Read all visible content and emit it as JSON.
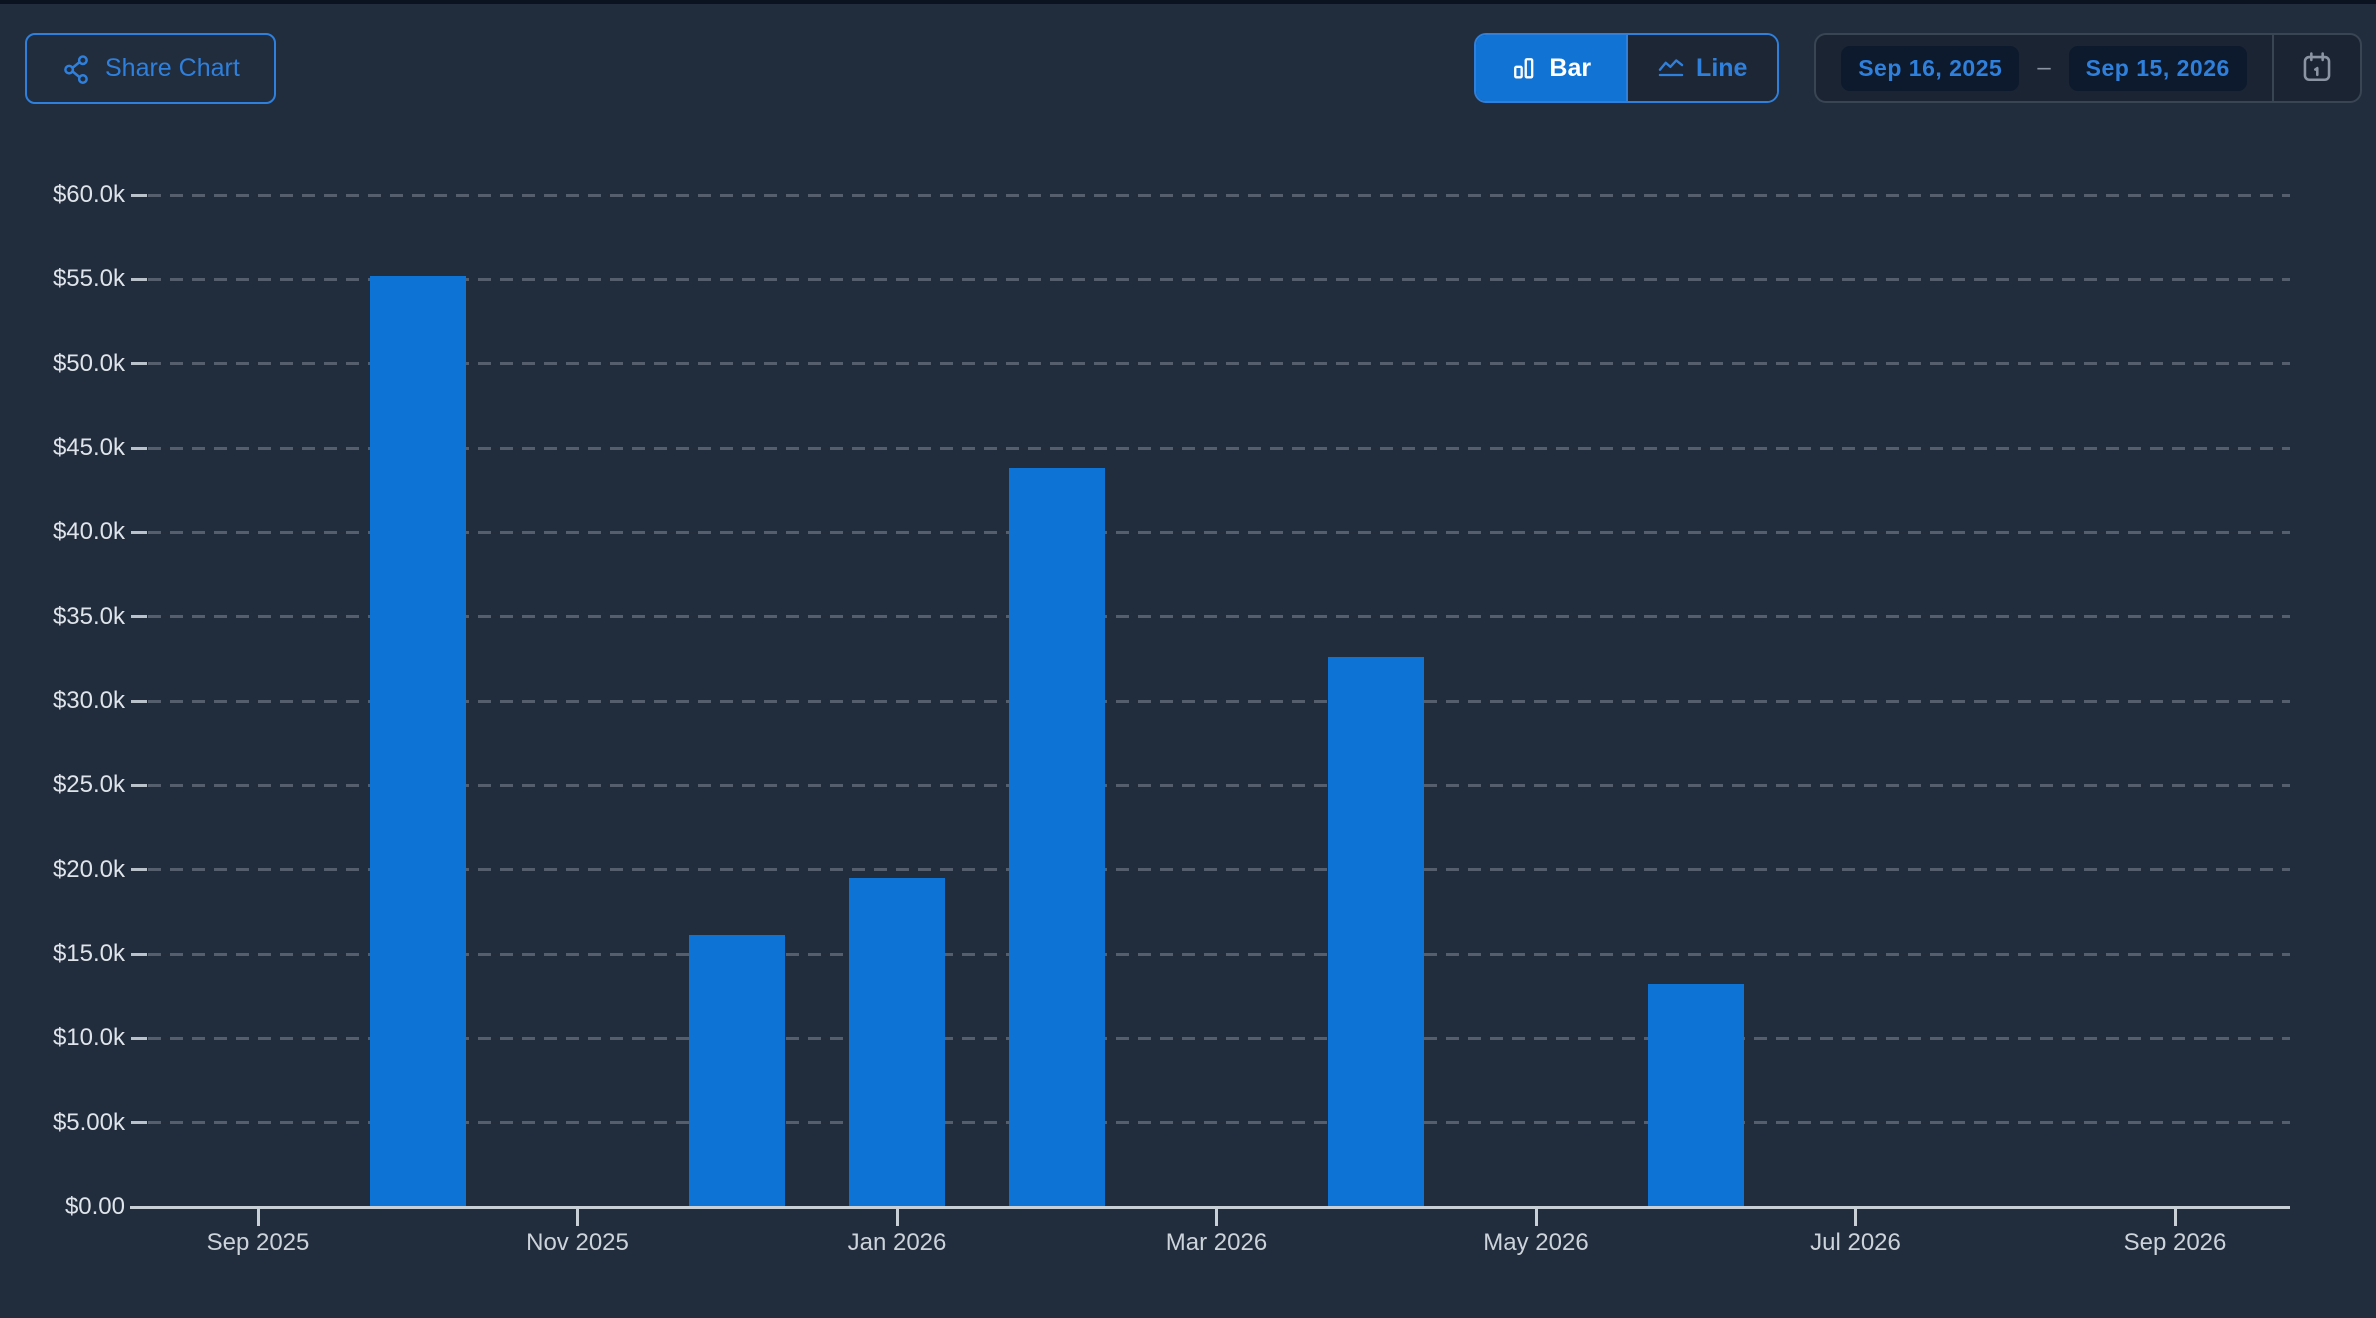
{
  "header": {
    "share_button": {
      "label": "Share Chart",
      "icon": "share-icon"
    },
    "view_toggle": {
      "options": [
        {
          "label": "Bar",
          "icon": "bar-chart-icon",
          "active": true
        },
        {
          "label": "Line",
          "icon": "line-chart-icon",
          "active": false
        }
      ]
    },
    "date_range": {
      "start": "Sep 16, 2025",
      "separator": "–",
      "end": "Sep 15, 2026",
      "icon": "calendar-icon"
    }
  },
  "colors": {
    "background": "#212c3c",
    "accent_blue": "#2f80dc",
    "bar_fill": "#0d73d4",
    "active_toggle_fill": "#1173d4",
    "pill_background": "#0d1a2d",
    "axis_line": "#c9cfd7",
    "gridline": "#545e6c",
    "y_label_text": "#dfe4ea",
    "x_label_text": "#ccd3db"
  },
  "chart_data": {
    "type": "bar",
    "x": [
      "Sep 2025",
      "Oct 2025",
      "Nov 2025",
      "Dec 2025",
      "Jan 2026",
      "Feb 2026",
      "Mar 2026",
      "Apr 2026",
      "May 2026",
      "Jun 2026",
      "Jul 2026",
      "Aug 2026",
      "Sep 2026"
    ],
    "values": [
      0,
      55200,
      0,
      16100,
      19500,
      43800,
      0,
      32600,
      0,
      13200,
      0,
      0,
      0
    ],
    "ylim": [
      0,
      60000
    ],
    "ytick_step": 5000,
    "ytick_labels": [
      "$0.00",
      "$5.00k",
      "$10.0k",
      "$15.0k",
      "$20.0k",
      "$25.0k",
      "$30.0k",
      "$35.0k",
      "$40.0k",
      "$45.0k",
      "$50.0k",
      "$55.0k",
      "$60.0k"
    ],
    "xtick_labels": [
      "Sep 2025",
      "Nov 2025",
      "Jan 2026",
      "Mar 2026",
      "May 2026",
      "Jul 2026",
      "Sep 2026"
    ],
    "xtick_month_indices": [
      0,
      2,
      4,
      6,
      8,
      10,
      12
    ],
    "grid": "dashed-horizontal",
    "legend": "none",
    "bar_color": "#0d73d4"
  }
}
